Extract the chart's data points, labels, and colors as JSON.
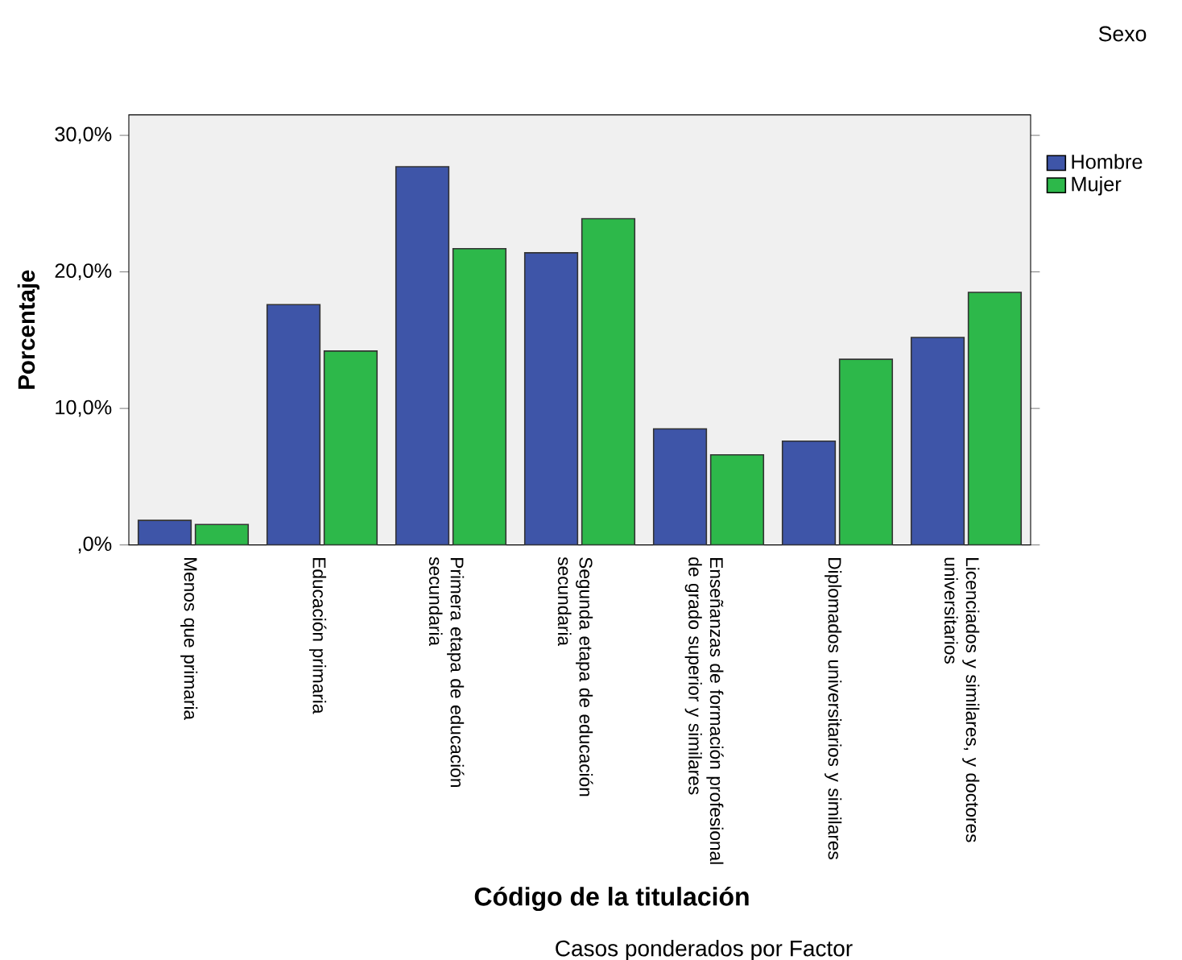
{
  "chart_data": {
    "type": "bar",
    "xlabel": "Código de la titulación",
    "ylabel": "Porcentaje",
    "legend_title": "Sexo",
    "legend": "top right",
    "grid": false,
    "categories": [
      "Menos que primaria",
      "Educación primaria",
      "Primera etapa de educación secundaria",
      "Segunda etapa de educación secundaria",
      "Enseñanzas de formación profesional de grado superior y similares",
      "Diplomados universitarios y similares",
      "Licenciados y similares, y doctores universitarios"
    ],
    "series": [
      {
        "name": "Hombre",
        "color": "#3e55a8",
        "values": [
          1.8,
          17.6,
          27.7,
          21.4,
          8.5,
          7.6,
          15.2
        ]
      },
      {
        "name": "Mujer",
        "color": "#2db84a",
        "values": [
          1.5,
          14.2,
          21.7,
          23.9,
          6.6,
          13.6,
          18.5
        ]
      }
    ],
    "ylim": [
      0,
      31.5
    ],
    "yticks": [
      {
        "value": 0,
        "label": ",0%"
      },
      {
        "value": 10,
        "label": "10,0%"
      },
      {
        "value": 20,
        "label": "20,0%"
      },
      {
        "value": 30,
        "label": "30,0%"
      }
    ],
    "annotations": [
      "Casos ponderados por Factor"
    ]
  }
}
